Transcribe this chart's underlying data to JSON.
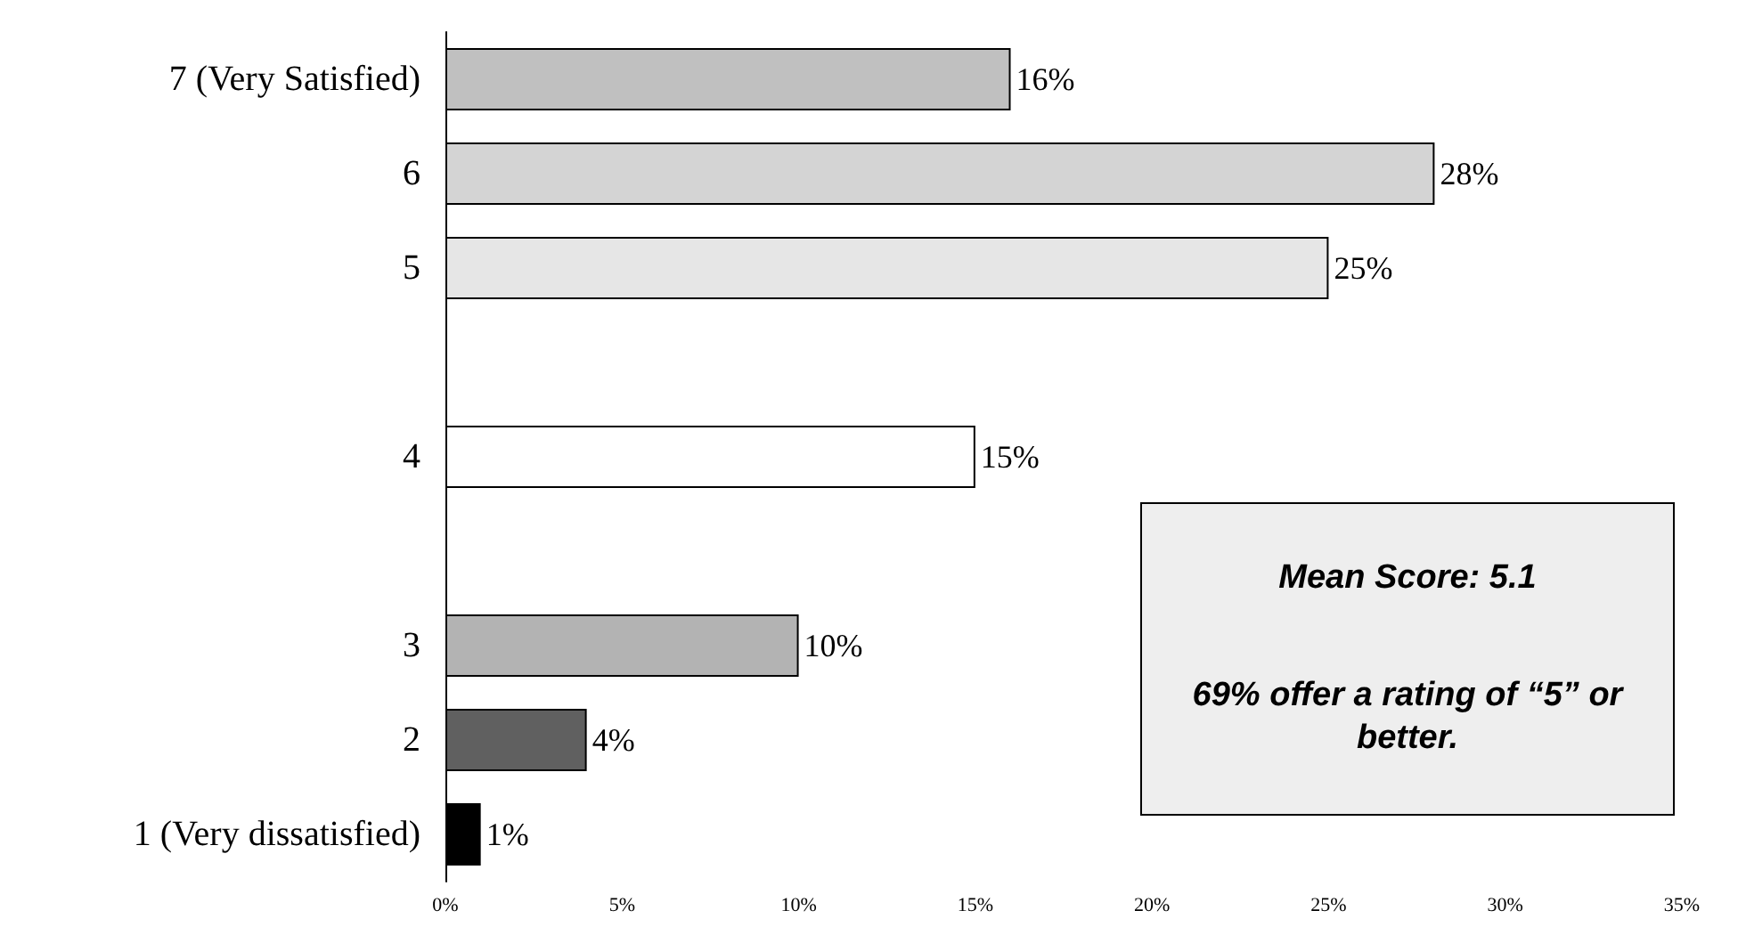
{
  "chart_data": {
    "type": "bar",
    "orientation": "horizontal",
    "categories": [
      "7 (Very Satisfied)",
      "6",
      "5",
      null,
      "4",
      null,
      "3",
      "2",
      "1 (Very dissatisfied)"
    ],
    "values": [
      16,
      28,
      25,
      null,
      15,
      null,
      10,
      4,
      1
    ],
    "value_labels": [
      "16%",
      "28%",
      "25%",
      null,
      "15%",
      null,
      "10%",
      "4%",
      "1%"
    ],
    "colors": [
      "#c0c0c0",
      "#d4d4d4",
      "#e6e6e6",
      null,
      "#ffffff",
      null,
      "#b3b3b3",
      "#606060",
      "#000000"
    ],
    "xlim": [
      0,
      35
    ],
    "xticks": [
      {
        "value": 0,
        "label": "0%"
      },
      {
        "value": 5,
        "label": "5%"
      },
      {
        "value": 10,
        "label": "10%"
      },
      {
        "value": 15,
        "label": "15%"
      },
      {
        "value": 20,
        "label": "20%"
      },
      {
        "value": 25,
        "label": "25%"
      },
      {
        "value": 30,
        "label": "30%"
      },
      {
        "value": 35,
        "label": "35%"
      }
    ],
    "annotations": [
      "Mean Score: 5.1",
      "69% offer a rating of “5” or better."
    ]
  }
}
